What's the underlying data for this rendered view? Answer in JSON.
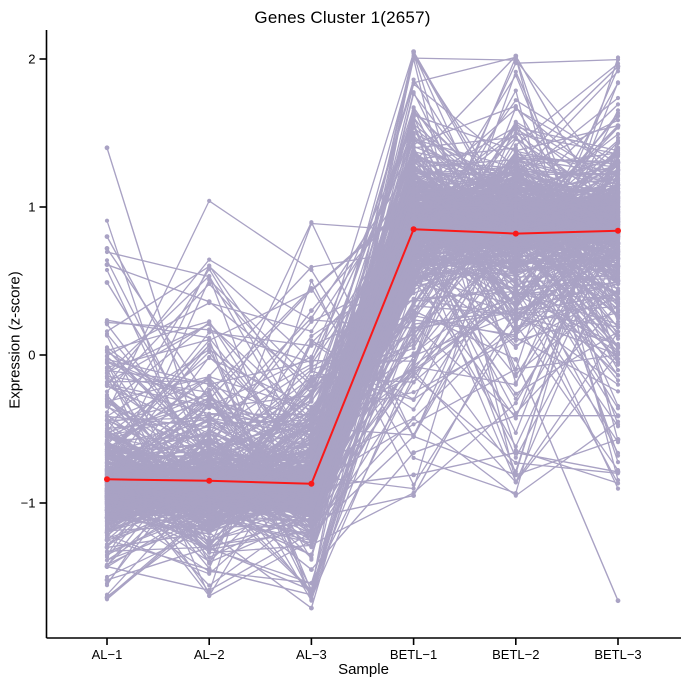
{
  "title": "Genes Cluster 1(2657)",
  "colors": {
    "gene_line": "#A9A2C4",
    "mean_line": "#FA1919",
    "axis": "#000000",
    "background": "#FFFFFF"
  },
  "chart_data": {
    "type": "line",
    "title": "Genes Cluster 1(2657)",
    "xlabel": "Sample",
    "ylabel": "Expression (z-score)",
    "categories": [
      "AL−1",
      "AL−2",
      "AL−3",
      "BETL−1",
      "BETL−2",
      "BETL−3"
    ],
    "y_ticks": [
      2,
      1,
      0,
      -1
    ],
    "y_tick_labels": [
      "2",
      "1",
      "0",
      "−1"
    ],
    "ylim": [
      -1.9,
      2.15
    ],
    "grid": false,
    "legend": "none",
    "cluster_id": 1,
    "n_genes": 2657,
    "series": [
      {
        "name": "cluster-mean",
        "color": "#FA1919",
        "values": [
          -0.84,
          -0.85,
          -0.87,
          0.85,
          0.82,
          0.84
        ]
      }
    ],
    "gene_band": {
      "color": "#A9A2C4",
      "al_dense_range": [
        -1.28,
        0.15
      ],
      "betl_dense_range": [
        -0.45,
        2.05
      ],
      "al_outlier_min": -1.71,
      "al_outlier_max": 1.4,
      "betl_outlier_min": -1.66,
      "betl_peak_values": [
        2.05,
        2.02,
        1.95
      ],
      "valley_between_betl_peaks": 1.28
    },
    "feature_lines": [
      [
        1.4,
        -0.8,
        -0.3,
        1.62,
        1.38,
        1.55
      ],
      [
        0.8,
        -0.45,
        0.25,
        1.3,
        0.95,
        1.1
      ],
      [
        0.72,
        -0.3,
        0.44,
        1.05,
        1.22,
        0.9
      ],
      [
        0.61,
        0.36,
        -0.2,
        0.92,
        1.32,
        1.15
      ],
      [
        0.49,
        -0.62,
        0.3,
        1.1,
        0.85,
        1.0
      ],
      [
        0.22,
        0.17,
        -0.05,
        1.45,
        1.05,
        1.25
      ],
      [
        -1.64,
        -1.05,
        -1.35,
        0.6,
        0.75,
        0.65
      ],
      [
        -1.52,
        -1.3,
        -1.59,
        0.55,
        0.7,
        0.8
      ],
      [
        -1.43,
        -1.59,
        -1.2,
        0.7,
        0.55,
        0.75
      ],
      [
        -1.3,
        -1.2,
        -1.71,
        0.65,
        0.8,
        0.6
      ],
      [
        -1.25,
        -1.45,
        -1.62,
        0.72,
        0.62,
        0.7
      ],
      [
        -0.95,
        -1.3,
        -1.1,
        -0.95,
        0.3,
        0.5
      ],
      [
        -1.2,
        -0.9,
        -1.45,
        -0.66,
        -0.41,
        -0.41
      ],
      [
        -0.85,
        -1.0,
        -0.8,
        0.3,
        -0.03,
        -1.66
      ],
      [
        -1.1,
        -0.75,
        -1.2,
        -0.55,
        -0.81,
        -0.57
      ],
      [
        -0.6,
        -1.1,
        -0.9,
        -0.81,
        -0.66,
        -0.79
      ],
      [
        -1.05,
        -0.88,
        -0.98,
        2.05,
        0.85,
        1.3
      ],
      [
        -0.92,
        -1.02,
        -0.95,
        1.3,
        2.02,
        0.82
      ],
      [
        -0.96,
        -0.86,
        -1.0,
        0.9,
        1.28,
        1.95
      ]
    ],
    "render": {
      "sim_lines": 520,
      "seed": 20657
    }
  }
}
